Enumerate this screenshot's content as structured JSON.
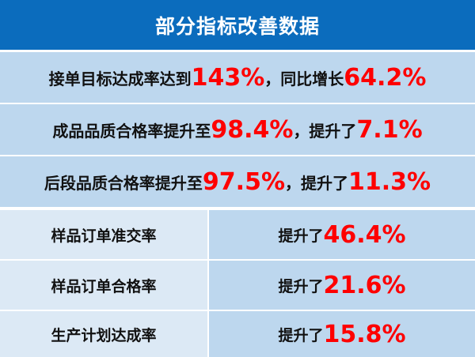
{
  "title": "部分指标改善数据",
  "colors": {
    "header": "#0b6cbd",
    "highlight": "#fe0000",
    "row": "#bdd7ee",
    "row_light": "#dce9f5"
  },
  "full_rows": [
    {
      "parts": [
        "接单目标达成率达到",
        "143%",
        "，同比增长",
        "64.2%"
      ]
    },
    {
      "parts": [
        "成品品质合格率提升至",
        "98.4%",
        "，提升了",
        "7.1%"
      ]
    },
    {
      "parts": [
        "后段品质合格率提升至",
        "97.5%",
        "，提升了",
        "11.3%"
      ]
    }
  ],
  "split_rows": [
    {
      "label": "样品订单准交率",
      "prefix": "提升了",
      "value": "46.4%"
    },
    {
      "label": "样品订单合格率",
      "prefix": "提升了",
      "value": "21.6%"
    },
    {
      "label": "生产计划达成率",
      "prefix": "提升了",
      "value": "15.8%"
    }
  ]
}
